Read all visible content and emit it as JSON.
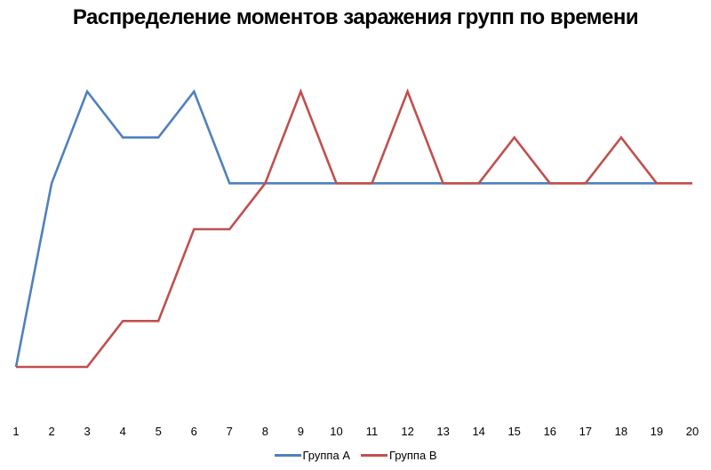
{
  "chart_data": {
    "type": "line",
    "title": "Распределение моментов заражения групп по времени",
    "xlabel": "",
    "ylabel": "",
    "categories": [
      "1",
      "2",
      "3",
      "4",
      "5",
      "6",
      "7",
      "8",
      "9",
      "10",
      "11",
      "12",
      "13",
      "14",
      "15",
      "16",
      "17",
      "18",
      "19",
      "20"
    ],
    "series": [
      {
        "name": "Группа А",
        "color": "#4F81BD",
        "values": [
          0,
          4,
          6,
          5,
          5,
          6,
          4,
          4,
          4,
          4,
          4,
          4,
          4,
          4,
          4,
          4,
          4,
          4,
          4,
          null
        ]
      },
      {
        "name": "Группа В",
        "color": "#C0504D",
        "values": [
          0,
          0,
          0,
          1,
          1,
          3,
          3,
          4,
          6,
          4,
          4,
          6,
          4,
          4,
          5,
          4,
          4,
          5,
          4,
          4
        ]
      }
    ],
    "ylim": [
      0,
      6
    ],
    "y_axis_visible": false,
    "grid": false,
    "legend_position": "bottom"
  },
  "legend": {
    "items": [
      {
        "label": "Группа А",
        "color": "#4F81BD"
      },
      {
        "label": "Группа В",
        "color": "#C0504D"
      }
    ]
  }
}
